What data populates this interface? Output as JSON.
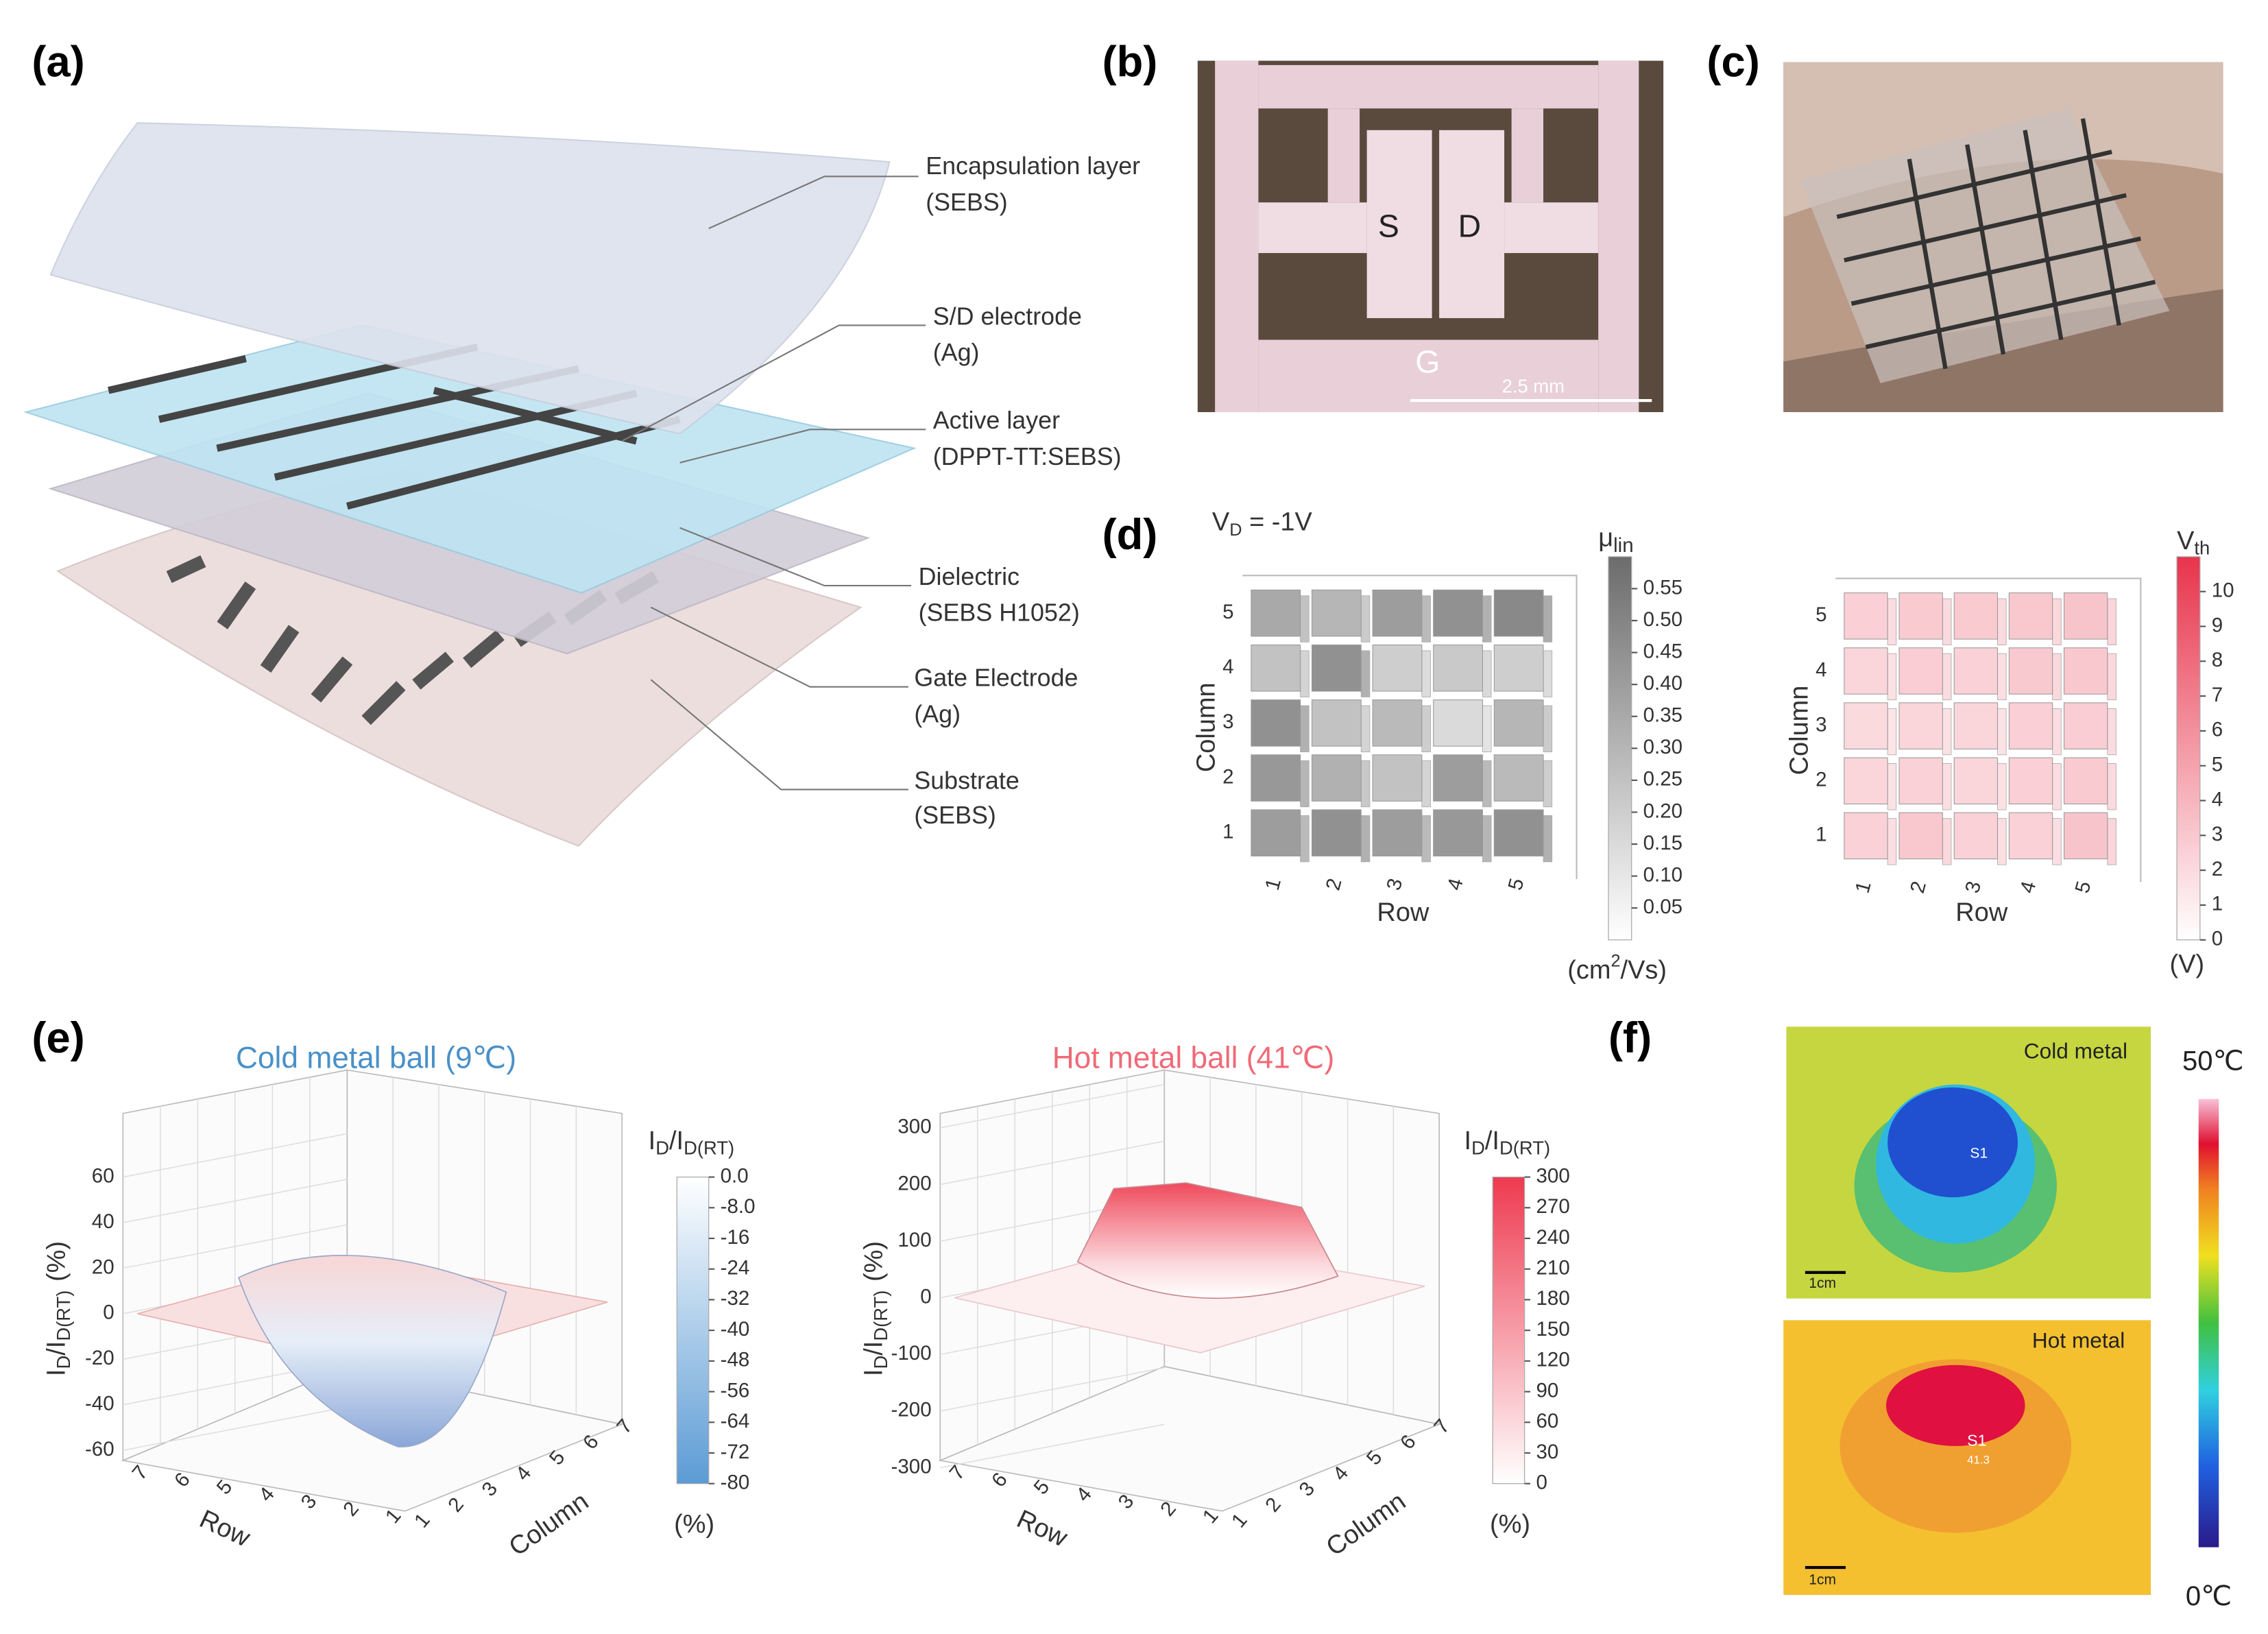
{
  "panels": {
    "a": {
      "label": "(a)",
      "layers": [
        {
          "name": "Encapsulation layer",
          "material": "(SEBS)"
        },
        {
          "name": "S/D electrode",
          "material": "(Ag)"
        },
        {
          "name": "Active layer",
          "material": "(DPPT-TT:SEBS)"
        },
        {
          "name": "Dielectric",
          "material": "(SEBS H1052)"
        },
        {
          "name": "Gate Electrode",
          "material": "(Ag)"
        },
        {
          "name": "Substrate",
          "material": "(SEBS)"
        }
      ]
    },
    "b": {
      "label": "(b)",
      "source": "S",
      "drain": "D",
      "gate": "G",
      "scale_bar": "2.5 mm"
    },
    "c": {
      "label": "(c)"
    },
    "d": {
      "label": "(d)",
      "condition": [
        "V",
        "D",
        " = -1V"
      ],
      "mobility_map": {
        "x_label": "Row",
        "y_label": "Column",
        "row_labels": [
          1,
          2,
          3,
          4,
          5
        ],
        "column_labels": [
          1,
          2,
          3,
          4,
          5
        ],
        "values": [
          [
            0.4,
            0.45,
            0.4,
            0.42,
            0.45
          ],
          [
            0.42,
            0.32,
            0.25,
            0.4,
            0.28
          ],
          [
            0.45,
            0.25,
            0.28,
            0.15,
            0.3
          ],
          [
            0.25,
            0.45,
            0.2,
            0.22,
            0.2
          ],
          [
            0.35,
            0.3,
            0.4,
            0.45,
            0.48
          ]
        ],
        "colorbar": {
          "title": [
            "μ",
            "lin"
          ],
          "unit": [
            "(cm",
            "2",
            "/Vs)"
          ],
          "clim": [
            0,
            0.6
          ],
          "color_low": "#ffffff",
          "color_high": "#6c6c6c",
          "ticks": [
            0.55,
            {
              "value": 0.5,
              "label": "0.50"
            },
            0.45,
            {
              "value": 0.4,
              "label": "0.40"
            },
            0.35,
            {
              "value": 0.3,
              "label": "0.30"
            },
            0.25,
            {
              "value": 0.2,
              "label": "0.20"
            },
            0.15,
            {
              "value": 0.1,
              "label": "0.10"
            },
            0.05
          ]
        }
      },
      "vth_map": {
        "x_label": "Row",
        "y_label": "Column",
        "row_labels": [
          1,
          2,
          3,
          4,
          5
        ],
        "column_labels": [
          1,
          2,
          3,
          4,
          5
        ],
        "values": [
          [
            2.5,
            3.0,
            2.5,
            2.5,
            3.2
          ],
          [
            2.2,
            2.5,
            2.3,
            2.6,
            2.8
          ],
          [
            2.0,
            2.3,
            2.2,
            2.6,
            2.7
          ],
          [
            2.3,
            2.7,
            2.5,
            2.9,
            3.0
          ],
          [
            2.6,
            2.8,
            2.8,
            3.0,
            3.2
          ]
        ],
        "colorbar": {
          "title": [
            "V",
            "th"
          ],
          "unit": "(V)",
          "clim": [
            0,
            11
          ],
          "color_low": "#ffffff",
          "color_high": "#e8344c",
          "ticks": [
            10,
            9,
            8,
            7,
            6,
            5,
            4,
            3,
            2,
            1,
            0
          ]
        }
      }
    },
    "e": {
      "label": "(e)",
      "cold": {
        "title": "Cold metal ball (9℃)",
        "title_color": "#4a90c8",
        "z_label": [
          "I",
          "D",
          "/I",
          "D(RT)",
          "(%)"
        ],
        "zlim": [
          -60,
          60
        ],
        "zticks": [
          60,
          40,
          20,
          0,
          -20,
          -40,
          -60
        ],
        "x_label": "Row",
        "y_label": "Column",
        "row_ticks": [
          1,
          2,
          3,
          4,
          5,
          6,
          7
        ],
        "column_ticks": [
          1,
          2,
          3,
          4,
          5,
          6,
          7
        ],
        "colorbar": {
          "title": [
            "I",
            "D",
            "/I",
            "D(RT)"
          ],
          "unit": "(%)",
          "clim": [
            -80,
            0
          ],
          "color_low": "#5b9bd5",
          "color_high": "#ffffff",
          "ticks": [
            {
              "value": 0,
              "label": "0.0"
            },
            {
              "value": -8,
              "label": "-8.0"
            },
            -16,
            -24,
            -32,
            -40,
            -48,
            -56,
            -64,
            -72,
            -80
          ]
        }
      },
      "hot": {
        "title": "Hot metal ball (41℃)",
        "title_color": "#f06a78",
        "z_label": [
          "I",
          "D",
          "/I",
          "D(RT)",
          "(%)"
        ],
        "zlim": [
          -300,
          300
        ],
        "zticks": [
          300,
          200,
          100,
          0,
          -100,
          -200,
          -300
        ],
        "x_label": "Row",
        "y_label": "Column",
        "row_ticks": [
          1,
          2,
          3,
          4,
          5,
          6,
          7
        ],
        "column_ticks": [
          1,
          2,
          3,
          4,
          5,
          6,
          7
        ],
        "colorbar": {
          "title": [
            "I",
            "D",
            "/I",
            "D(RT)"
          ],
          "unit": "(%)",
          "clim": [
            0,
            300
          ],
          "color_low": "#ffffff",
          "color_high": "#ee3a50",
          "ticks": [
            300,
            270,
            240,
            210,
            180,
            150,
            120,
            90,
            60,
            30,
            0
          ]
        }
      }
    },
    "f": {
      "label": "(f)",
      "cold_caption": "Cold metal",
      "hot_caption": "Hot metal",
      "scale_bar": "1cm",
      "spot": "S1",
      "hot_reading": "41.3",
      "colorbar_max": "50℃",
      "colorbar_min": "0℃"
    }
  }
}
